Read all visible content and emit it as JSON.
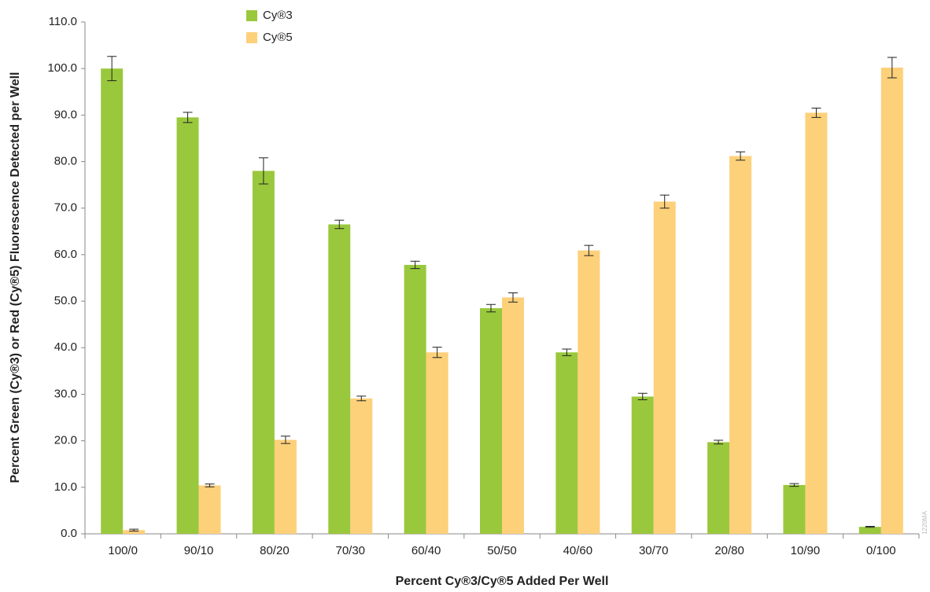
{
  "chart_data": {
    "type": "bar",
    "y_label": "Percent Green (Cy®3) or Red (Cy®5) Fluorescence Detected per Well",
    "x_label": "Percent Cy®3/Cy®5 Added Per Well",
    "annotation": "1220MA",
    "categories": [
      "100/0",
      "90/10",
      "80/20",
      "70/30",
      "60/40",
      "50/50",
      "40/60",
      "30/70",
      "20/80",
      "10/90",
      "0/100"
    ],
    "series": [
      {
        "name": "Cy®3",
        "color": "#9ac83c",
        "values": [
          100.0,
          89.5,
          78.0,
          66.5,
          57.8,
          48.5,
          39.0,
          29.5,
          19.7,
          10.5,
          1.5
        ],
        "errors": [
          2.6,
          1.1,
          2.8,
          0.9,
          0.8,
          0.8,
          0.7,
          0.7,
          0.4,
          0.3,
          0.1
        ]
      },
      {
        "name": "Cy®5",
        "color": "#fdd07a",
        "values": [
          0.8,
          10.4,
          20.2,
          29.1,
          39.0,
          50.8,
          60.9,
          71.4,
          81.2,
          90.5,
          100.2
        ],
        "errors": [
          0.2,
          0.3,
          0.8,
          0.5,
          1.1,
          1.0,
          1.1,
          1.4,
          0.9,
          1.0,
          2.2
        ]
      }
    ],
    "ylim": [
      0,
      110
    ],
    "yticks": [
      {
        "value": 0,
        "label": "0.0"
      },
      {
        "value": 10,
        "label": "10.0"
      },
      {
        "value": 20,
        "label": "20.0"
      },
      {
        "value": 30,
        "label": "30.0"
      },
      {
        "value": 40,
        "label": "40.0"
      },
      {
        "value": 50,
        "label": "50.0"
      },
      {
        "value": 60,
        "label": "60.0"
      },
      {
        "value": 70,
        "label": "70.0"
      },
      {
        "value": 80,
        "label": "80.0"
      },
      {
        "value": 90,
        "label": "90.0"
      },
      {
        "value": 100,
        "label": "100.0"
      },
      {
        "value": 110,
        "label": "110.0"
      }
    ],
    "grid": false,
    "legend": "top"
  }
}
